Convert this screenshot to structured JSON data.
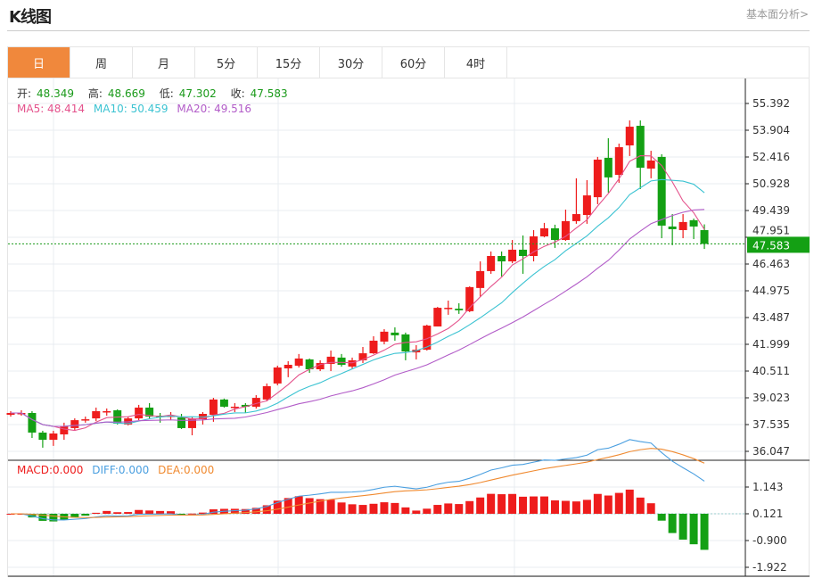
{
  "header": {
    "title": "K线图",
    "link": "基本面分析>"
  },
  "tabs": [
    {
      "label": "日",
      "active": true
    },
    {
      "label": "周"
    },
    {
      "label": "月"
    },
    {
      "label": "5分"
    },
    {
      "label": "15分"
    },
    {
      "label": "30分"
    },
    {
      "label": "60分"
    },
    {
      "label": "4时"
    }
  ],
  "info": {
    "open_label": "开:",
    "open": "48.349",
    "high_label": "高:",
    "high": "48.669",
    "low_label": "低:",
    "low": "47.302",
    "close_label": "收:",
    "close": "47.583",
    "ma5": "MA5: 48.414",
    "ma10": "MA10: 50.459",
    "ma20": "MA20: 49.516"
  },
  "macd_info": {
    "macd": "MACD:0.000",
    "diff": "DIFF:0.000",
    "dea": "DEA:0.000"
  },
  "colors": {
    "up": "#ee1c1c",
    "down": "#14a014",
    "ma5": "#e4528c",
    "ma10": "#3cc3d2",
    "ma20": "#b25cc8",
    "diff": "#4a9fe0",
    "dea": "#f08a30",
    "accent": "#f0883c"
  },
  "chart_data": {
    "type": "candlestick",
    "fields": [
      "open",
      "close",
      "high",
      "low"
    ],
    "ohlc": [
      [
        38.08,
        38.18,
        38.28,
        37.98
      ],
      [
        38.13,
        38.18,
        38.33,
        38.03
      ],
      [
        38.18,
        37.09,
        38.28,
        36.79
      ],
      [
        37.09,
        36.69,
        37.19,
        36.25
      ],
      [
        36.69,
        37.04,
        37.19,
        36.35
      ],
      [
        36.99,
        37.44,
        37.64,
        36.69
      ],
      [
        37.34,
        37.78,
        37.88,
        37.24
      ],
      [
        37.78,
        37.83,
        37.98,
        37.64
      ],
      [
        37.88,
        38.28,
        38.48,
        37.73
      ],
      [
        38.23,
        38.28,
        38.43,
        38.03
      ],
      [
        38.33,
        37.59,
        38.38,
        37.54
      ],
      [
        37.54,
        37.88,
        37.98,
        37.49
      ],
      [
        37.88,
        38.48,
        38.63,
        37.78
      ],
      [
        38.48,
        37.98,
        38.73,
        37.88
      ],
      [
        38.03,
        37.98,
        38.18,
        37.64
      ],
      [
        37.98,
        38.03,
        38.23,
        37.78
      ],
      [
        37.93,
        37.34,
        38.13,
        37.29
      ],
      [
        37.34,
        37.88,
        37.98,
        36.94
      ],
      [
        37.83,
        38.13,
        38.23,
        37.54
      ],
      [
        38.08,
        38.93,
        39.02,
        37.69
      ],
      [
        38.93,
        38.53,
        38.98,
        38.48
      ],
      [
        38.48,
        38.53,
        38.73,
        38.23
      ],
      [
        38.63,
        38.53,
        38.73,
        38.18
      ],
      [
        38.53,
        39.02,
        39.17,
        38.43
      ],
      [
        38.93,
        39.67,
        39.82,
        38.83
      ],
      [
        39.82,
        40.71,
        40.81,
        39.72
      ],
      [
        40.66,
        40.86,
        41.06,
        40.17
      ],
      [
        40.81,
        41.21,
        41.46,
        40.71
      ],
      [
        41.16,
        40.61,
        41.21,
        40.41
      ],
      [
        40.61,
        40.96,
        41.11,
        40.51
      ],
      [
        40.91,
        41.31,
        41.65,
        40.51
      ],
      [
        41.26,
        40.86,
        41.46,
        40.76
      ],
      [
        40.76,
        41.11,
        41.26,
        40.66
      ],
      [
        41.11,
        41.5,
        41.85,
        40.96
      ],
      [
        41.5,
        42.2,
        42.45,
        41.46
      ],
      [
        42.15,
        42.7,
        42.84,
        42.0
      ],
      [
        42.65,
        42.5,
        42.94,
        42.2
      ],
      [
        42.55,
        41.6,
        42.65,
        41.11
      ],
      [
        41.55,
        41.7,
        41.95,
        41.16
      ],
      [
        41.7,
        43.04,
        43.09,
        41.65
      ],
      [
        42.99,
        44.03,
        44.08,
        42.99
      ],
      [
        43.98,
        44.03,
        44.43,
        43.64
      ],
      [
        43.98,
        43.89,
        44.28,
        43.69
      ],
      [
        43.84,
        45.18,
        45.22,
        43.79
      ],
      [
        45.13,
        46.07,
        46.61,
        44.63
      ],
      [
        46.07,
        46.91,
        47.16,
        45.92
      ],
      [
        46.91,
        46.61,
        47.16,
        45.77
      ],
      [
        46.61,
        47.26,
        47.8,
        46.51
      ],
      [
        47.26,
        46.91,
        48.05,
        45.92
      ],
      [
        46.91,
        48.0,
        48.35,
        46.61
      ],
      [
        48.0,
        48.45,
        48.75,
        47.95
      ],
      [
        48.45,
        47.8,
        48.65,
        47.36
      ],
      [
        47.8,
        48.85,
        49.49,
        47.75
      ],
      [
        48.85,
        49.24,
        51.23,
        48.7
      ],
      [
        49.19,
        50.28,
        51.13,
        48.7
      ],
      [
        50.18,
        52.27,
        52.42,
        49.79
      ],
      [
        52.37,
        51.28,
        53.46,
        50.43
      ],
      [
        51.42,
        52.96,
        53.16,
        50.98
      ],
      [
        53.06,
        54.1,
        54.45,
        52.47
      ],
      [
        54.15,
        51.82,
        54.45,
        50.63
      ],
      [
        51.77,
        52.22,
        52.76,
        51.23
      ],
      [
        52.42,
        48.6,
        52.57,
        47.9
      ],
      [
        48.55,
        48.4,
        49.24,
        47.51
      ],
      [
        48.35,
        48.8,
        49.24,
        47.9
      ],
      [
        48.9,
        48.55,
        48.99,
        47.85
      ],
      [
        48.349,
        47.583,
        48.669,
        47.302
      ]
    ],
    "price_ticks": [
      "55.392",
      "53.904",
      "52.416",
      "50.928",
      "49.439",
      "47.951",
      "46.463",
      "44.975",
      "43.487",
      "41.999",
      "40.511",
      "39.023",
      "37.535",
      "36.047"
    ],
    "price_range": [
      36.047,
      55.392
    ],
    "last_price": "47.583",
    "macd_ticks": [
      "1.143",
      "0.121",
      "-0.900",
      "-1.922"
    ],
    "macd_range": [
      -1.922,
      1.143
    ],
    "grid": true
  }
}
